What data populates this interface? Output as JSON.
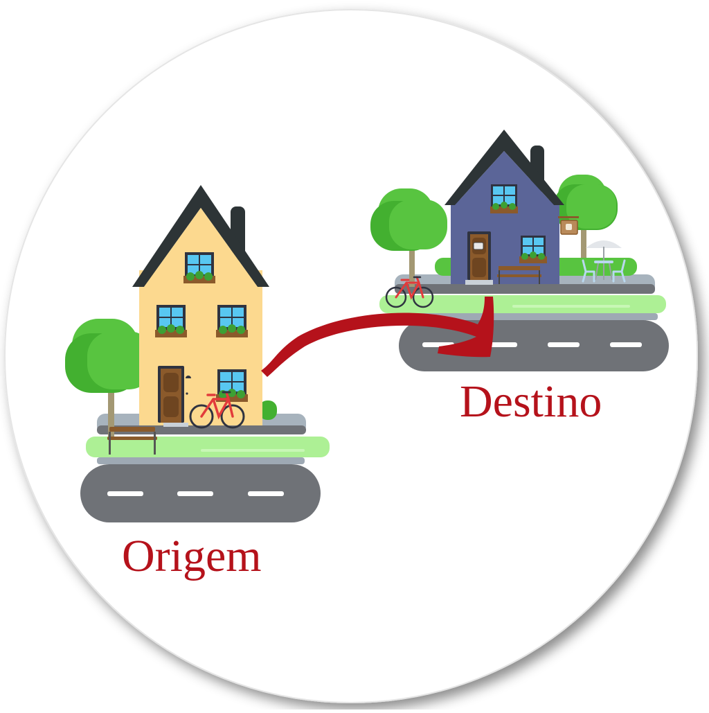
{
  "labels": {
    "origin": "Origem",
    "destination": "Destino"
  },
  "colors": {
    "label_text": "#b5121b",
    "arrow": "#b5121b",
    "origin_house_wall": "#fcd98f",
    "destination_house_wall": "#5b6598",
    "roof": "#2d3436",
    "tree_green": "#58c440",
    "road": "#6f7277",
    "grass": "#adf095",
    "sidewalk": "#a7b3bd"
  },
  "icons": [
    "house-icon",
    "tree-icon",
    "bicycle-icon",
    "bench-icon",
    "road-icon",
    "cafe-sign-icon",
    "umbrella-table-icon",
    "chair-icon"
  ]
}
